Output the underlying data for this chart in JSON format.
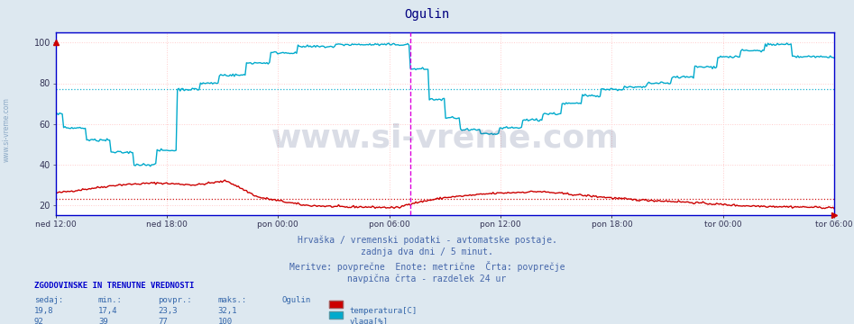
{
  "title": "Ogulin",
  "title_color": "#000080",
  "bg_color": "#dde8f0",
  "plot_bg_color": "#ffffff",
  "grid_color": "#ffcccc",
  "figsize": [
    9.47,
    3.6
  ],
  "dpi": 100,
  "ylim": [
    15,
    105
  ],
  "yticks": [
    20,
    40,
    60,
    80,
    100
  ],
  "xlabel_ticks": [
    "ned 12:00",
    "ned 18:00",
    "pon 00:00",
    "pon 06:00",
    "pon 12:00",
    "pon 18:00",
    "tor 00:00",
    "tor 06:00"
  ],
  "n_points": 576,
  "temp_color": "#cc0000",
  "humidity_color": "#00aacc",
  "vline_color": "#dd00dd",
  "watermark_color": "#334477",
  "watermark_alpha": 0.18,
  "temp_avg": 23.3,
  "hum_avg": 77,
  "left_label_color": "#7799bb",
  "axis_color": "#0000cc",
  "subtitle_lines": [
    "Hrvaška / vremenski podatki - avtomatske postaje.",
    "zadnja dva dni / 5 minut.",
    "Meritve: povprečne  Enote: metrične  Črta: povprečje",
    "navpična črta - razdelek 24 ur"
  ],
  "footer_header": "ZGODOVINSKE IN TRENUTNE VREDNOSTI",
  "footer_cols": [
    "sedaj:",
    "min.:",
    "povpr.:",
    "maks.:"
  ],
  "footer_rows": [
    [
      "19,8",
      "17,4",
      "23,3",
      "32,1"
    ],
    [
      "92",
      "39",
      "77",
      "100"
    ]
  ],
  "footer_station": "Ogulin",
  "footer_labels": [
    "temperatura[C]",
    "vlaga[%]"
  ],
  "footer_label_colors": [
    "#cc0000",
    "#00aacc"
  ]
}
